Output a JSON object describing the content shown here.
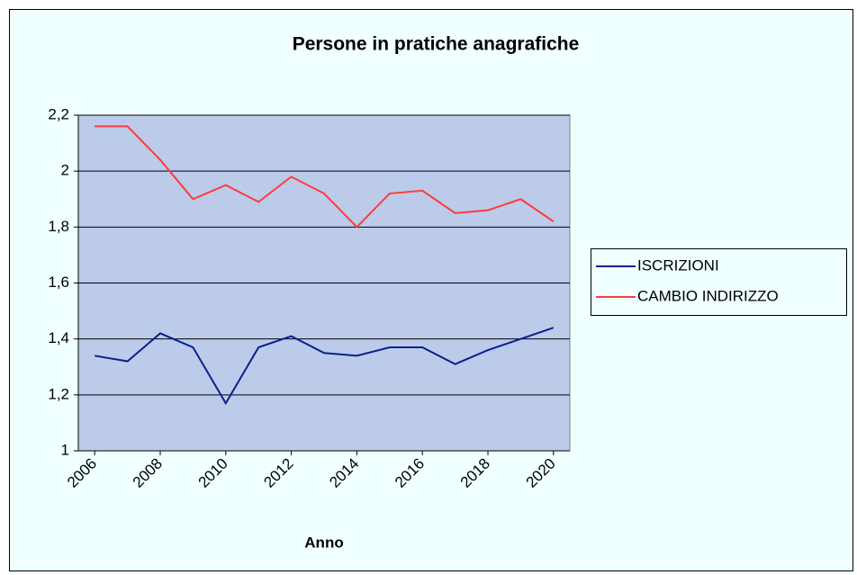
{
  "chart_data": {
    "type": "line",
    "title": "Persone in pratiche anagrafiche",
    "x_label": "Anno",
    "x": [
      2006,
      2007,
      2008,
      2009,
      2010,
      2011,
      2012,
      2013,
      2014,
      2015,
      2016,
      2017,
      2018,
      2019,
      2020
    ],
    "xlim": [
      2005.5,
      2020.5
    ],
    "xticks": [
      2006,
      2008,
      2010,
      2012,
      2014,
      2016,
      2018,
      2020
    ],
    "ylim": [
      1,
      2.2
    ],
    "yticks": [
      1,
      {
        "value": 1.2,
        "label": "1,2"
      },
      {
        "value": 1.4,
        "label": "1,4"
      },
      {
        "value": 1.6,
        "label": "1,6"
      },
      {
        "value": 1.8,
        "label": "1,8"
      },
      2,
      {
        "value": 2.2,
        "label": "2,2"
      }
    ],
    "grid": true,
    "legend": "right",
    "series": [
      {
        "name": "ISCRIZIONI",
        "color": "#0b1f8f",
        "values": [
          1.34,
          1.32,
          1.42,
          1.37,
          1.17,
          1.37,
          1.41,
          1.35,
          1.34,
          1.37,
          1.37,
          1.31,
          1.36,
          1.4,
          1.44
        ]
      },
      {
        "name": "CAMBIO INDIRIZZO",
        "color": "#ff3b3b",
        "values": [
          2.16,
          2.16,
          2.04,
          1.9,
          1.95,
          1.89,
          1.98,
          1.92,
          1.8,
          1.92,
          1.93,
          1.85,
          1.86,
          1.9,
          1.82
        ]
      }
    ]
  }
}
